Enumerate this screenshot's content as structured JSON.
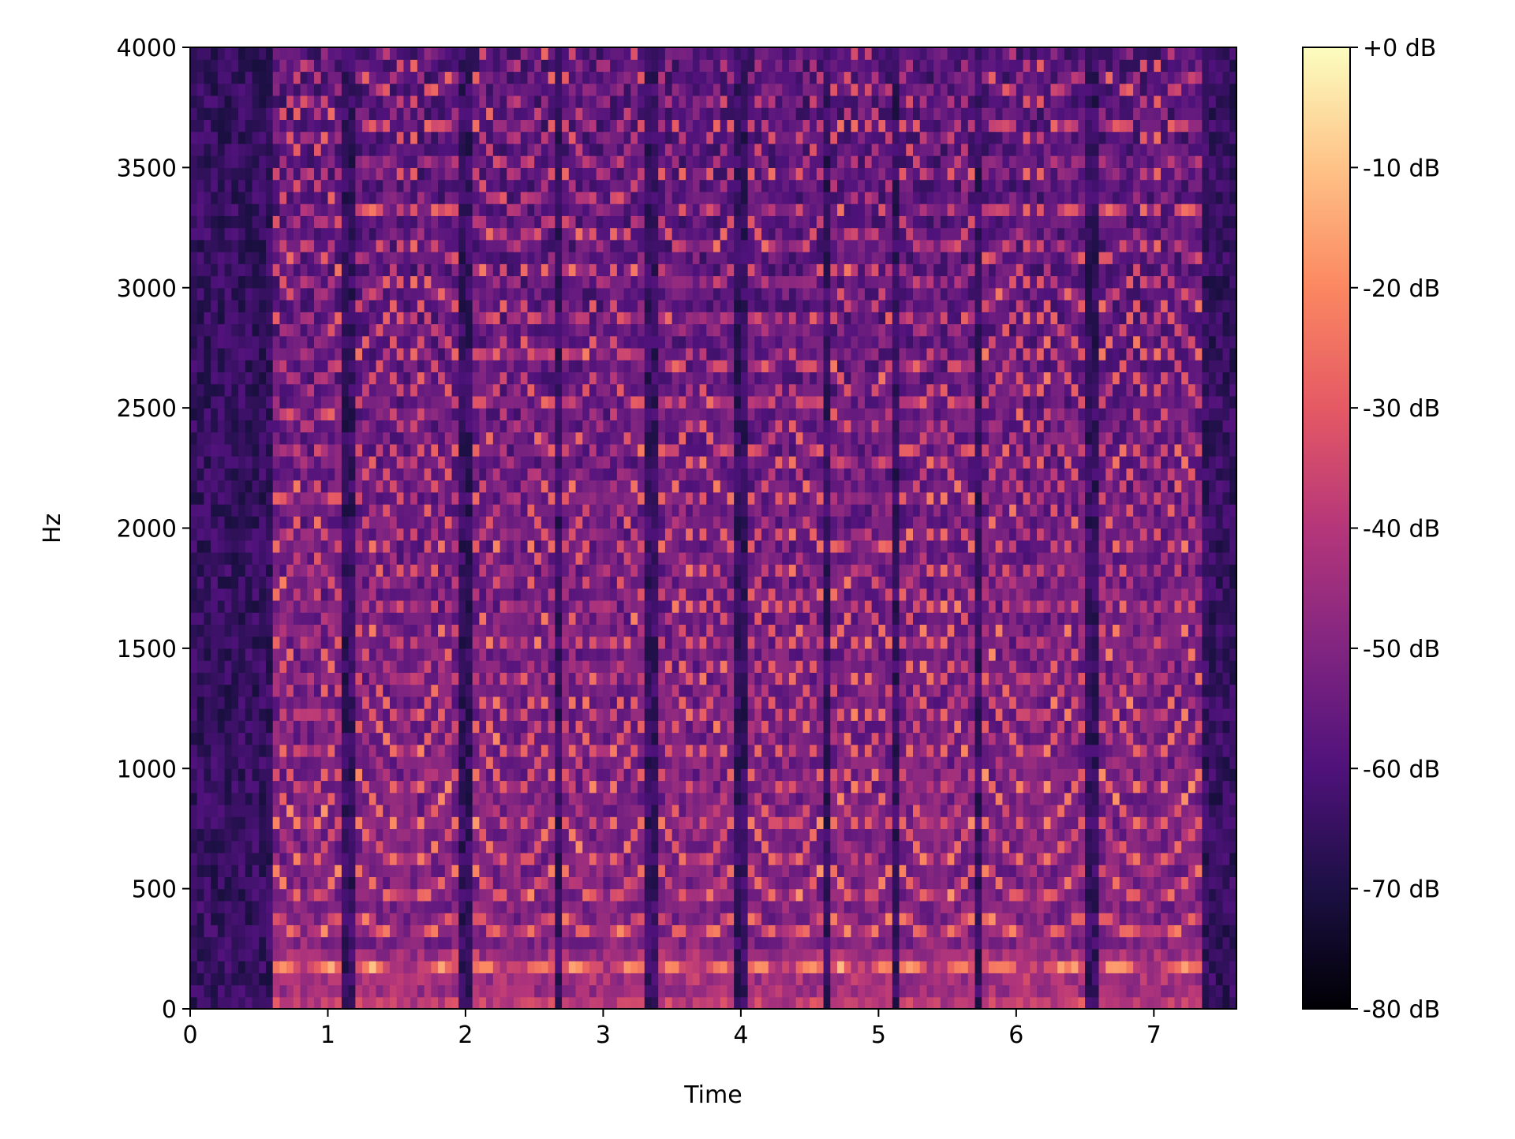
{
  "chart_data": {
    "type": "heatmap",
    "subtype": "spectrogram",
    "title": "",
    "xlabel": "Time",
    "ylabel": "Hz",
    "xlim": [
      0,
      7.6
    ],
    "ylim": [
      0,
      4000
    ],
    "xticks": [
      0,
      1,
      2,
      3,
      4,
      5,
      6,
      7
    ],
    "xtick_labels": [
      "0",
      "1",
      "2",
      "3",
      "4",
      "5",
      "6",
      "7"
    ],
    "yticks": [
      0,
      500,
      1000,
      1500,
      2000,
      2500,
      3000,
      3500,
      4000
    ],
    "ytick_labels": [
      "0",
      "500",
      "1000",
      "1500",
      "2000",
      "2500",
      "3000",
      "3500",
      "4000"
    ],
    "colorbar": {
      "colormap": "magma",
      "range_db": [
        -80,
        0
      ],
      "ticks": [
        0,
        -10,
        -20,
        -30,
        -40,
        -50,
        -60,
        -70,
        -80
      ],
      "tick_labels": [
        "+0 dB",
        "-10 dB",
        "-20 dB",
        "-30 dB",
        "-40 dB",
        "-50 dB",
        "-60 dB",
        "-70 dB",
        "-80 dB"
      ],
      "colors": [
        "#000004",
        "#1c1044",
        "#4f127b",
        "#812581",
        "#b5367a",
        "#e55964",
        "#fb8761",
        "#fec287",
        "#fcfdbf"
      ]
    },
    "approx_vocal_segments_s": [
      [
        0.6,
        1.1
      ],
      [
        1.2,
        1.95
      ],
      [
        2.05,
        2.65
      ],
      [
        2.7,
        3.3
      ],
      [
        3.4,
        3.95
      ],
      [
        4.05,
        4.6
      ],
      [
        4.65,
        5.1
      ],
      [
        5.15,
        5.7
      ],
      [
        5.75,
        6.5
      ],
      [
        6.6,
        7.35
      ]
    ],
    "approx_fundamental_hz": 200,
    "background_db": -65
  }
}
